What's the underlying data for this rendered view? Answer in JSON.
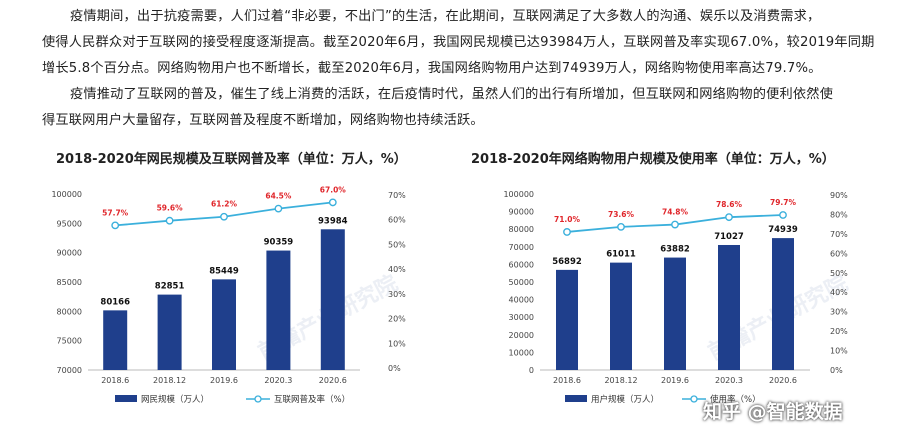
{
  "text": {
    "p1_lines": [
      "疫情期间，出于抗疫需要，人们过着“非必要，不出门”的生活，在此期间，互联网满足了大多数人的沟通、娱乐以及消费需求，",
      "使得人民群众对于互联网的接受程度逐渐提高。截至2020年6月，我国网民规模已达93984万人，互联网普及率实现67.0%，较2019年同期",
      "增长5.8个百分点。网络购物用户也不断增长，截至2020年6月，我国网络购物用户达到74939万人，网络购物使用率高达79.7%。"
    ],
    "p2_lines": [
      "疫情推动了互联网的普及，催生了线上消费的活跃，在后疫情时代，虽然人们的出行有所增加，但互联网和网络购物的便利依然使",
      "得互联网用户大量留存，互联网普及程度不断增加，网络购物也持续活跃。"
    ]
  },
  "watermark": {
    "brand": "前瞻产业研究院"
  },
  "zhihu_watermark": "知乎 @智能数据",
  "colors": {
    "bar": "#1f3f8c",
    "line": "#3bb0dc",
    "rate_label": "#e0262b"
  },
  "chart_data": [
    {
      "type": "bar",
      "title": "2018-2020年网民规模及互联网普及率（单位：万人，%）",
      "categories": [
        "2018.6",
        "2018.12",
        "2019.6",
        "2020.3",
        "2020.6"
      ],
      "series": [
        {
          "name": "网民规模（万人）",
          "type": "bar",
          "axis": "left",
          "values": [
            80166,
            82851,
            85449,
            90359,
            93984
          ]
        },
        {
          "name": "互联网普及率（%）",
          "type": "line",
          "axis": "right",
          "values": [
            57.7,
            59.6,
            61.2,
            64.5,
            67.0
          ],
          "labels": [
            "57.7%",
            "59.6%",
            "61.2%",
            "64.5%",
            "67.0%"
          ]
        }
      ],
      "left_axis": {
        "ylim": [
          70000,
          100000
        ],
        "ticks": [
          70000,
          75000,
          80000,
          85000,
          90000,
          95000,
          100000
        ]
      },
      "right_axis": {
        "ylim": [
          0,
          70
        ],
        "ticks": [
          "0%",
          "10%",
          "20%",
          "30%",
          "40%",
          "50%",
          "60%",
          "70%"
        ]
      },
      "legend": "bottom",
      "grid": false
    },
    {
      "type": "bar",
      "title": "2018-2020年网络购物用户规模及使用率（单位：万人，%）",
      "categories": [
        "2018.6",
        "2018.12",
        "2019.6",
        "2020.3",
        "2020.6"
      ],
      "series": [
        {
          "name": "用户规模（万人）",
          "type": "bar",
          "axis": "left",
          "values": [
            56892,
            61011,
            63882,
            71027,
            74939
          ]
        },
        {
          "name": "使用率（%）",
          "type": "line",
          "axis": "right",
          "values": [
            71.0,
            73.6,
            74.8,
            78.6,
            79.7
          ],
          "labels": [
            "71.0%",
            "73.6%",
            "74.8%",
            "78.6%",
            "79.7%"
          ]
        }
      ],
      "left_axis": {
        "ylim": [
          0,
          100000
        ],
        "ticks": [
          0,
          10000,
          20000,
          30000,
          40000,
          50000,
          60000,
          70000,
          80000,
          90000,
          100000
        ]
      },
      "right_axis": {
        "ylim": [
          0,
          90
        ],
        "ticks": [
          "0%",
          "10%",
          "20%",
          "30%",
          "40%",
          "50%",
          "60%",
          "70%",
          "80%",
          "90%"
        ]
      },
      "legend": "bottom",
      "grid": false
    }
  ]
}
